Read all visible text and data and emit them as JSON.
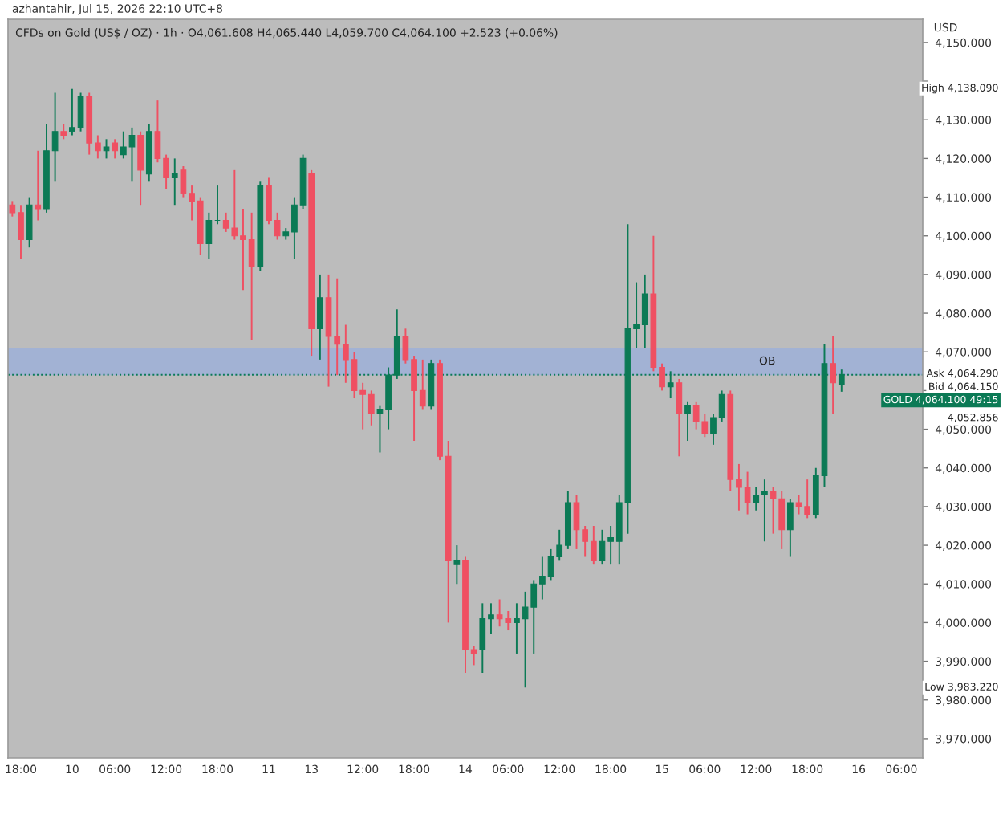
{
  "chart_data": {
    "type": "candlestick",
    "title": "CFDs on Gold (US$ / OZ) · 1h · O4,061.608 H4,065.440 L4,059.700 C4,064.100 +2.523 (+0.06%)",
    "ylabel": "USD",
    "annotations": [
      "azhantahir, Jul 15, 2026 22:10 UTC+8",
      "High 4,138.090",
      "Ask 4,064.290",
      "Bid 4,064.150",
      "4,052.856",
      "Low 3,983.220"
    ],
    "categories": [
      null,
      "18:00",
      null,
      null,
      null,
      null,
      null,
      "10",
      null,
      null,
      null,
      null,
      "06:00",
      null,
      null,
      null,
      null,
      null,
      "12:00",
      null,
      null,
      null,
      null,
      null,
      "18:00",
      null,
      null,
      null,
      null,
      null,
      "11",
      null,
      null,
      null,
      null,
      "13",
      null,
      null,
      null,
      null,
      null,
      "12:00",
      null,
      null,
      null,
      null,
      null,
      "18:00",
      null,
      null,
      null,
      null,
      null,
      "14",
      null,
      null,
      null,
      null,
      "06:00",
      null,
      null,
      null,
      null,
      null,
      "12:00",
      null,
      null,
      null,
      null,
      null,
      "18:00",
      null,
      null,
      null,
      null,
      null,
      "15",
      null,
      null,
      null,
      null,
      "06:00",
      null,
      null,
      null,
      null,
      null,
      "12:00",
      null,
      null,
      null,
      null,
      null,
      "18:00",
      null,
      null,
      null,
      null,
      null,
      "16",
      null,
      null,
      null,
      null,
      "06:00",
      null,
      null
    ],
    "ohlc": [
      [
        4108,
        4109,
        4105,
        4106
      ],
      [
        4106,
        4108,
        4094,
        4099
      ],
      [
        4099,
        4110,
        4097,
        4108
      ],
      [
        4108,
        4122,
        4104,
        4107
      ],
      [
        4107,
        4129,
        4106,
        4122
      ],
      [
        4122,
        4137,
        4114,
        4127
      ],
      [
        4127,
        4129,
        4125,
        4126
      ],
      [
        4127,
        4138,
        4126,
        4128
      ],
      [
        4128,
        4137,
        4127,
        4136
      ],
      [
        4136,
        4137,
        4121,
        4124
      ],
      [
        4124,
        4126,
        4120,
        4122
      ],
      [
        4122,
        4125,
        4120,
        4123
      ],
      [
        4124,
        4125,
        4120,
        4122
      ],
      [
        4121,
        4127,
        4120,
        4123
      ],
      [
        4123,
        4128,
        4114,
        4126
      ],
      [
        4126,
        4127,
        4108,
        4117
      ],
      [
        4116,
        4129,
        4114,
        4127
      ],
      [
        4127,
        4135,
        4119,
        4120
      ],
      [
        4120,
        4121,
        4112,
        4115
      ],
      [
        4115,
        4120,
        4108,
        4116
      ],
      [
        4117,
        4118,
        4110,
        4111
      ],
      [
        4111,
        4113,
        4104,
        4109
      ],
      [
        4109,
        4110,
        4095,
        4098
      ],
      [
        4098,
        4106,
        4094,
        4104
      ],
      [
        4104,
        4113,
        4103,
        4104
      ],
      [
        4104,
        4106,
        4101,
        4102
      ],
      [
        4102,
        4117,
        4099,
        4100
      ],
      [
        4100,
        4107,
        4086,
        4099
      ],
      [
        4099,
        4106,
        4073,
        4092
      ],
      [
        4092,
        4114,
        4091,
        4113
      ],
      [
        4113,
        4115,
        4103,
        4104
      ],
      [
        4104,
        4106,
        4099,
        4100
      ],
      [
        4100,
        4102,
        4099,
        4101
      ],
      [
        4101,
        4110,
        4094,
        4108
      ],
      [
        4108,
        4121,
        4107,
        4120
      ],
      [
        4116,
        4117,
        4069,
        4076
      ],
      [
        4076,
        4090,
        4068,
        4084
      ],
      [
        4084,
        4090,
        4061,
        4074
      ],
      [
        4074,
        4089,
        4064,
        4072
      ],
      [
        4072,
        4077,
        4062,
        4068
      ],
      [
        4068,
        4070,
        4058,
        4060
      ],
      [
        4060,
        4062,
        4050,
        4059
      ],
      [
        4059,
        4060,
        4051,
        4054
      ],
      [
        4054,
        4056,
        4044,
        4055
      ],
      [
        4055,
        4066,
        4050,
        4064
      ],
      [
        4064,
        4081,
        4063,
        4074
      ],
      [
        4074,
        4076,
        4067,
        4068
      ],
      [
        4068,
        4069,
        4047,
        4060
      ],
      [
        4060,
        4068,
        4055,
        4056
      ],
      [
        4056,
        4068,
        4055,
        4067
      ],
      [
        4067,
        4068,
        4042,
        4043
      ],
      [
        4043,
        4047,
        4000,
        4016
      ],
      [
        4015,
        4020,
        4010,
        4016
      ],
      [
        4016,
        4017,
        3987,
        3993
      ],
      [
        3993,
        3994,
        3989,
        3992
      ],
      [
        3993,
        4005,
        3987,
        4001
      ],
      [
        4001,
        4005,
        3997,
        4002
      ],
      [
        4002,
        4006,
        3999,
        4001
      ],
      [
        4001,
        4003,
        3998,
        4000
      ],
      [
        4000,
        4005,
        3992,
        4001
      ],
      [
        4001,
        4008,
        3983.22,
        4004
      ],
      [
        4004,
        4011,
        3992,
        4010
      ],
      [
        4010,
        4017,
        4006,
        4012
      ],
      [
        4012,
        4019,
        4011,
        4017
      ],
      [
        4017,
        4024,
        4016,
        4020
      ],
      [
        4020,
        4034,
        4019,
        4031
      ],
      [
        4031,
        4033,
        4019,
        4024
      ],
      [
        4024,
        4025,
        4017,
        4021
      ],
      [
        4021,
        4025,
        4015,
        4016
      ],
      [
        4016,
        4024,
        4015,
        4021
      ],
      [
        4021,
        4025,
        4015,
        4022
      ],
      [
        4021,
        4033,
        4015,
        4031
      ],
      [
        4031,
        4103,
        4023,
        4076
      ],
      [
        4076,
        4088,
        4071,
        4077
      ],
      [
        4077,
        4090,
        4071,
        4085
      ],
      [
        4085,
        4100,
        4065,
        4066
      ],
      [
        4066,
        4067,
        4060,
        4061
      ],
      [
        4061,
        4065,
        4058,
        4062
      ],
      [
        4062,
        4063,
        4043,
        4054
      ],
      [
        4054,
        4057,
        4047,
        4056
      ],
      [
        4056,
        4057,
        4050,
        4052
      ],
      [
        4052,
        4054,
        4048,
        4049
      ],
      [
        4049,
        4054,
        4046,
        4053
      ],
      [
        4053,
        4060,
        4052,
        4059
      ],
      [
        4059,
        4060,
        4034,
        4037
      ],
      [
        4037,
        4041,
        4029,
        4035
      ],
      [
        4035,
        4039,
        4028,
        4031
      ],
      [
        4031,
        4035,
        4029,
        4033
      ],
      [
        4033,
        4037,
        4021,
        4034
      ],
      [
        4034,
        4035,
        4023,
        4032
      ],
      [
        4032,
        4034,
        4019,
        4024
      ],
      [
        4024,
        4032,
        4017,
        4031
      ],
      [
        4031,
        4033,
        4028,
        4030
      ],
      [
        4030,
        4037,
        4027,
        4028
      ],
      [
        4028,
        4040,
        4027,
        4038
      ],
      [
        4038,
        4072,
        4035,
        4067
      ],
      [
        4067,
        4074,
        4054,
        4062
      ],
      [
        4061.608,
        4065.44,
        4059.7,
        4064.1
      ],
      null,
      null,
      null,
      null,
      null,
      null,
      null,
      null,
      null
    ],
    "colors": [
      "#ef5062",
      "#ef5062",
      "#0b7a55",
      "#ef5062",
      "#0b7a55",
      "#0b7a55",
      "#ef5062",
      "#0b7a55",
      "#0b7a55",
      "#ef5062",
      "#ef5062",
      "#0b7a55",
      "#ef5062",
      "#0b7a55",
      "#0b7a55",
      "#ef5062",
      "#0b7a55",
      "#ef5062",
      "#ef5062",
      "#0b7a55",
      "#ef5062",
      "#ef5062",
      "#ef5062",
      "#0b7a55",
      "#0b7a55",
      "#ef5062",
      "#ef5062",
      "#ef5062",
      "#ef5062",
      "#0b7a55",
      "#ef5062",
      "#ef5062",
      "#0b7a55",
      "#0b7a55",
      "#0b7a55",
      "#ef5062",
      "#0b7a55",
      "#ef5062",
      "#ef5062",
      "#ef5062",
      "#ef5062",
      "#ef5062",
      "#ef5062",
      "#0b7a55",
      "#0b7a55",
      "#0b7a55",
      "#ef5062",
      "#ef5062",
      "#ef5062",
      "#0b7a55",
      "#ef5062",
      "#ef5062",
      "#0b7a55",
      "#ef5062",
      "#ef5062",
      "#0b7a55",
      "#0b7a55",
      "#ef5062",
      "#ef5062",
      "#0b7a55",
      "#0b7a55",
      "#0b7a55",
      "#0b7a55",
      "#0b7a55",
      "#0b7a55",
      "#0b7a55",
      "#ef5062",
      "#ef5062",
      "#ef5062",
      "#0b7a55",
      "#0b7a55",
      "#0b7a55",
      "#0b7a55",
      "#0b7a55",
      "#0b7a55",
      "#ef5062",
      "#ef5062",
      "#0b7a55",
      "#ef5062",
      "#0b7a55",
      "#ef5062",
      "#ef5062",
      "#0b7a55",
      "#0b7a55",
      "#ef5062",
      "#ef5062",
      "#ef5062",
      "#0b7a55",
      "#0b7a55",
      "#ef5062",
      "#ef5062",
      "#0b7a55",
      "#ef5062",
      "#ef5062",
      "#0b7a55",
      "#0b7a55",
      "#ef5062",
      "#0b7a55",
      null,
      null,
      null,
      null,
      null,
      null,
      null,
      null,
      null
    ],
    "ylim": [
      3965,
      4156
    ],
    "yticks": [
      {
        "value": 3970,
        "label": "3,970.000"
      },
      {
        "value": 3980,
        "label": "3,980.000"
      },
      {
        "value": 3990,
        "label": "3,990.000"
      },
      {
        "value": 4000,
        "label": "4,000.000"
      },
      {
        "value": 4010,
        "label": "4,010.000"
      },
      {
        "value": 4020,
        "label": "4,020.000"
      },
      {
        "value": 4030,
        "label": "4,030.000"
      },
      {
        "value": 4040,
        "label": "4,040.000"
      },
      {
        "value": 4050,
        "label": "4,050.000"
      },
      {
        "value": 4060,
        "label": null
      },
      {
        "value": 4070,
        "label": "4,070.000"
      },
      {
        "value": 4080,
        "label": "4,080.000"
      },
      {
        "value": 4090,
        "label": "4,090.000"
      },
      {
        "value": 4100,
        "label": "4,100.000"
      },
      {
        "value": 4110,
        "label": "4,110.000"
      },
      {
        "value": 4120,
        "label": "4,120.000"
      },
      {
        "value": 4130,
        "label": "4,130.000"
      },
      {
        "value": 4140,
        "label": null
      },
      {
        "value": 4150,
        "label": "4,150.000"
      }
    ],
    "bands": [
      {
        "axis": "y",
        "from": 4064,
        "to": 4071,
        "label": "OB",
        "color": "#9fb0d6"
      }
    ],
    "ref_lines": [
      {
        "axis": "y",
        "value": 4064.1,
        "label": "GOLD 4,064.100 49:15",
        "color": "#0b7a55",
        "line_style": "dotted"
      }
    ]
  }
}
